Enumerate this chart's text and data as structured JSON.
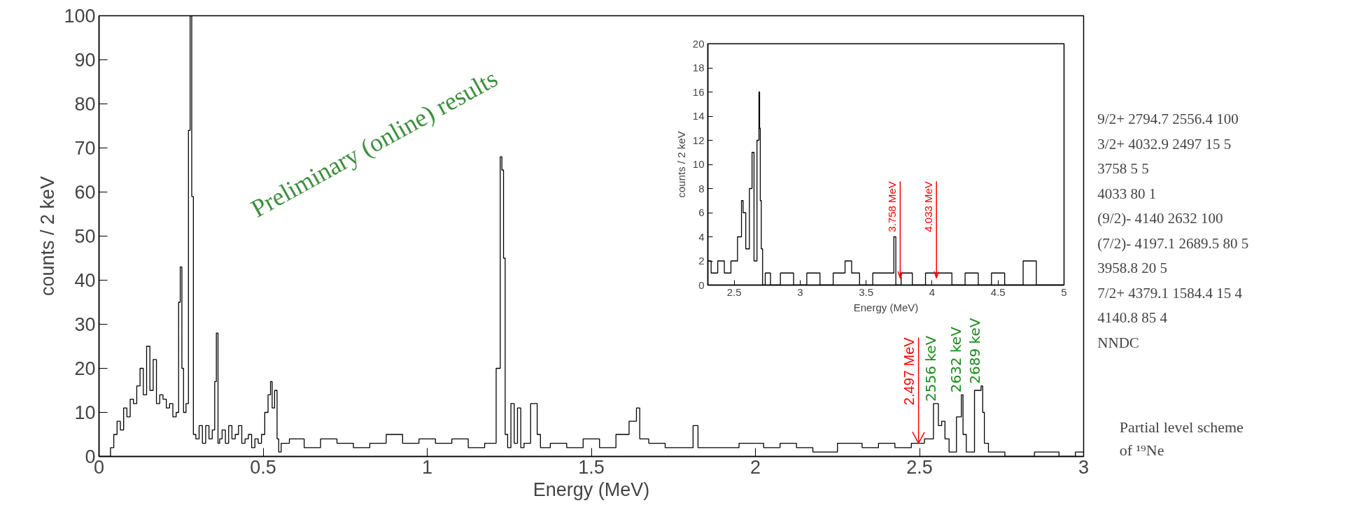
{
  "chart_data": [
    {
      "type": "step",
      "xlabel": "Energy (MeV)",
      "ylabel": "counts / 2 keV",
      "xlim": [
        0,
        3
      ],
      "ylim": [
        0,
        100
      ],
      "xticks": [
        0,
        0.5,
        1,
        1.5,
        2,
        2.5,
        3
      ],
      "yticks": [
        0,
        10,
        20,
        30,
        40,
        50,
        60,
        70,
        80,
        90,
        100
      ],
      "grid": false,
      "series": [
        {
          "color": "#000000",
          "x": [
            0.0,
            0.03,
            0.04,
            0.05,
            0.06,
            0.07,
            0.08,
            0.09,
            0.1,
            0.11,
            0.12,
            0.13,
            0.14,
            0.15,
            0.16,
            0.17,
            0.18,
            0.19,
            0.2,
            0.21,
            0.22,
            0.23,
            0.24,
            0.245,
            0.25,
            0.255,
            0.26,
            0.27,
            0.275,
            0.28,
            0.285,
            0.29,
            0.3,
            0.31,
            0.32,
            0.33,
            0.34,
            0.35,
            0.355,
            0.36,
            0.365,
            0.37,
            0.38,
            0.39,
            0.4,
            0.41,
            0.42,
            0.43,
            0.44,
            0.45,
            0.46,
            0.47,
            0.48,
            0.49,
            0.5,
            0.51,
            0.52,
            0.525,
            0.53,
            0.54,
            0.545,
            0.55,
            0.56,
            0.6,
            0.65,
            0.7,
            0.75,
            0.8,
            0.85,
            0.9,
            0.95,
            1.0,
            1.05,
            1.1,
            1.15,
            1.2,
            1.22,
            1.225,
            1.23,
            1.235,
            1.24,
            1.25,
            1.26,
            1.27,
            1.28,
            1.29,
            1.3,
            1.33,
            1.34,
            1.35,
            1.4,
            1.45,
            1.5,
            1.55,
            1.6,
            1.63,
            1.645,
            1.65,
            1.7,
            1.75,
            1.8,
            1.82,
            1.83,
            1.9,
            2.0,
            2.05,
            2.1,
            2.15,
            2.2,
            2.3,
            2.35,
            2.4,
            2.45,
            2.5,
            2.53,
            2.555,
            2.56,
            2.575,
            2.58,
            2.6,
            2.625,
            2.63,
            2.635,
            2.65,
            2.685,
            2.69,
            2.695,
            2.7,
            2.72,
            2.8,
            2.9,
            2.95,
            3.0
          ],
          "values": [
            0,
            0,
            2,
            5,
            8,
            6,
            11,
            9,
            13,
            12,
            16,
            20,
            14,
            25,
            15,
            22,
            12,
            14,
            13,
            11,
            12,
            9,
            10,
            35,
            43,
            20,
            10,
            12,
            74,
            100,
            59,
            5,
            4,
            7,
            3,
            7,
            4,
            6,
            17,
            28,
            3,
            4,
            6,
            3,
            7,
            4,
            5,
            7,
            3,
            4,
            5,
            2,
            4,
            3,
            5,
            10,
            14,
            17,
            11,
            15,
            4,
            1,
            3,
            4,
            2,
            4,
            3,
            2,
            3,
            5,
            3,
            4,
            3,
            4,
            2,
            3,
            20,
            68,
            65,
            45,
            5,
            2,
            12,
            3,
            11,
            2,
            3,
            12,
            5,
            2,
            3,
            2,
            4,
            2,
            5,
            8,
            11,
            4,
            3,
            2,
            2,
            7,
            2,
            2,
            3,
            2,
            3,
            2,
            1,
            3,
            2,
            3,
            2,
            3,
            4,
            12,
            7,
            8,
            4,
            1,
            9,
            14,
            5,
            1,
            15,
            16,
            10,
            3,
            1,
            0,
            1,
            0,
            1
          ]
        }
      ],
      "annotations": [
        "Preliminary (online) results",
        {
          "text": "2556 keV",
          "x": 2.556,
          "y": 12
        },
        {
          "text": "2632 keV",
          "x": 2.632,
          "y": 14
        },
        {
          "text": "2689 keV",
          "x": 2.689,
          "y": 16
        }
      ],
      "ref_lines": [
        {
          "axis": "x",
          "value": 2.497,
          "label": "2.497 MeV",
          "color": "#ff0000"
        }
      ]
    },
    {
      "type": "step",
      "xlabel": "Energy (MeV)",
      "ylabel": "counts / 2 keV",
      "xlim": [
        2.3,
        5
      ],
      "ylim": [
        0,
        20
      ],
      "xticks": [
        2.5,
        3,
        3.5,
        4,
        4.5,
        5
      ],
      "yticks": [
        0,
        2,
        4,
        6,
        8,
        10,
        12,
        14,
        16,
        18,
        20
      ],
      "grid": false,
      "series": [
        {
          "color": "#000000",
          "x": [
            2.3,
            2.35,
            2.4,
            2.45,
            2.5,
            2.55,
            2.56,
            2.575,
            2.6,
            2.63,
            2.64,
            2.66,
            2.685,
            2.69,
            2.695,
            2.7,
            2.71,
            2.72,
            2.75,
            2.8,
            2.9,
            3.0,
            3.1,
            3.2,
            3.3,
            3.38,
            3.4,
            3.5,
            3.6,
            3.7,
            3.72,
            3.73,
            3.8,
            3.9,
            4.0,
            4.1,
            4.2,
            4.3,
            4.4,
            4.5,
            4.6,
            4.78,
            4.8,
            5.0
          ],
          "values": [
            2,
            1,
            2,
            1,
            2,
            4,
            7,
            6,
            3,
            8,
            11,
            2,
            12,
            16,
            13,
            7,
            3,
            0,
            1,
            0,
            1,
            0,
            1,
            0,
            1,
            2,
            1,
            0,
            1,
            1,
            4,
            0,
            1,
            0,
            1,
            1,
            0,
            1,
            0,
            1,
            0,
            2,
            0,
            0
          ]
        }
      ],
      "ref_lines": [
        {
          "axis": "x",
          "value": 3.758,
          "label": "3.758 MeV",
          "color": "#ff0000"
        },
        {
          "axis": "x",
          "value": 4.033,
          "label": "4.033 MeV",
          "color": "#ff0000"
        }
      ]
    },
    {
      "type": "other",
      "title": "Partial level scheme of ¹⁹Ne",
      "annotations": [
        "9/2+ 2794.7 2556.4 100",
        "3/2+ 4032.9 2497 15 5",
        "3758 5 5",
        "4033 80 1",
        "(9/2)- 4140 2632 100",
        "(7/2)- 4197.1 2689.5 80 5",
        "3958.8 20 5",
        "7/2+ 4379.1 1584.4 15 4",
        "4140.8 85 4",
        "NNDC"
      ]
    }
  ]
}
